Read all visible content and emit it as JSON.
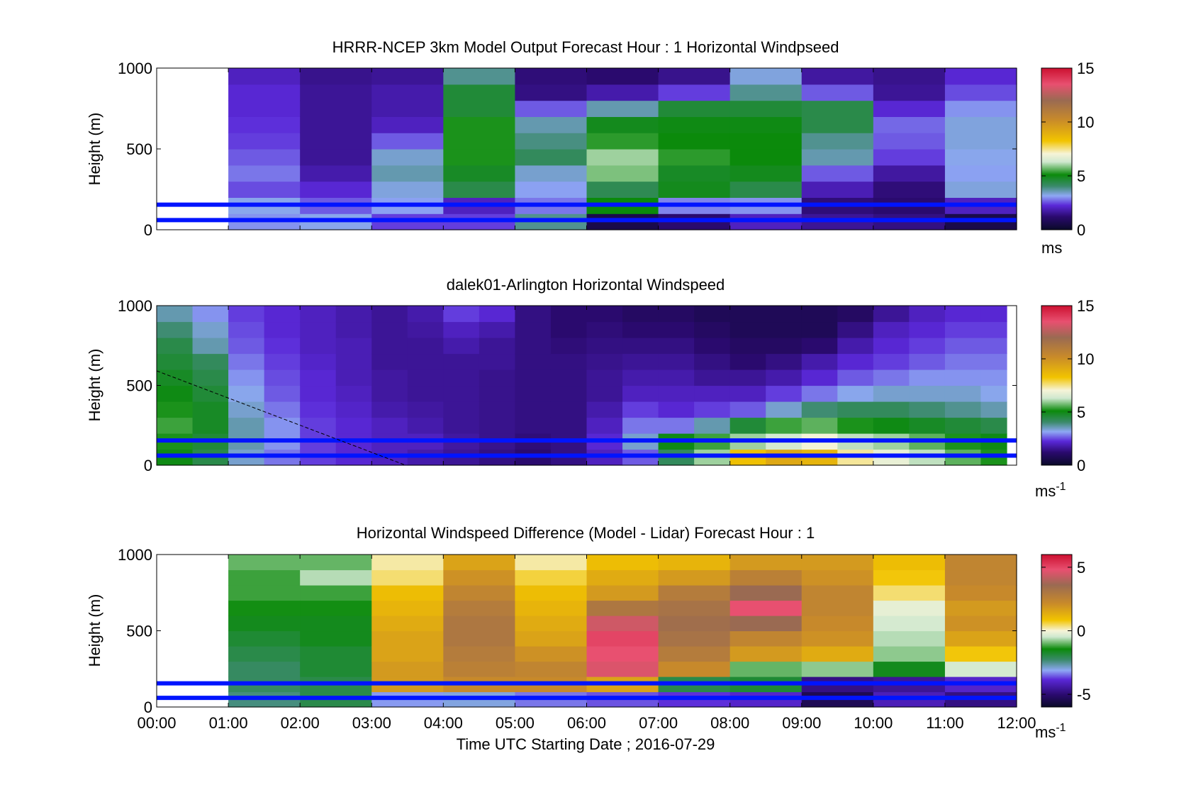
{
  "figure": {
    "xlabel": "Time UTC  Starting Date ; 2016-07-29",
    "x_ticks": [
      "00:00",
      "01:00",
      "02:00",
      "03:00",
      "04:00",
      "05:00",
      "06:00",
      "07:00",
      "08:00",
      "09:00",
      "10:00",
      "11:00",
      "12:00"
    ],
    "y_ticks": [
      "0",
      "500",
      "1000"
    ],
    "ylabel": "Height (m)"
  },
  "chart_data": [
    {
      "type": "heatmap",
      "title": "HRRR-NCEP 3km Model Output   Forecast Hour : 1 Horizontal Windpseed",
      "ylabel": "Height (m)",
      "xlim": [
        0,
        12
      ],
      "ylim": [
        0,
        1000
      ],
      "colorbar": {
        "min": 0,
        "max": 15,
        "ticks": [
          "0",
          "5",
          "10",
          "15"
        ],
        "unit": "ms",
        "unit_sup": ""
      },
      "reference_lines_m": [
        60,
        155
      ],
      "hour_columns": [
        [
          null,
          null,
          null,
          null,
          null,
          null,
          null,
          null,
          null,
          null
        ],
        [
          3.0,
          3.2,
          2.5,
          2.8,
          2.6,
          2.4,
          2.3,
          2.2,
          2.2,
          2.0
        ],
        [
          3.2,
          2.6,
          2.2,
          1.8,
          1.6,
          1.6,
          1.6,
          1.6,
          1.6,
          1.5
        ],
        [
          2.4,
          3.1,
          3.3,
          3.6,
          3.4,
          2.6,
          2.0,
          1.8,
          1.8,
          1.6
        ],
        [
          2.4,
          2.0,
          4.4,
          4.8,
          5.2,
          5.2,
          5.2,
          4.6,
          4.6,
          3.8
        ],
        [
          3.8,
          2.8,
          3.1,
          3.4,
          4.2,
          3.9,
          3.6,
          2.6,
          1.4,
          1.3
        ],
        [
          0.6,
          5.1,
          4.3,
          5.8,
          6.0,
          5.3,
          4.9,
          3.6,
          1.8,
          1.2
        ],
        [
          1.2,
          2.9,
          4.9,
          4.8,
          5.3,
          5.1,
          5.0,
          4.6,
          2.4,
          1.5
        ],
        [
          2.0,
          3.0,
          4.4,
          4.9,
          5.1,
          5.1,
          5.0,
          4.6,
          3.8,
          3.3
        ],
        [
          1.6,
          1.3,
          1.9,
          2.6,
          3.6,
          3.8,
          4.4,
          4.4,
          2.6,
          1.7
        ],
        [
          1.4,
          1.2,
          1.3,
          1.7,
          2.4,
          2.6,
          2.7,
          2.2,
          1.6,
          1.5
        ],
        [
          0.6,
          2.0,
          3.3,
          3.1,
          3.2,
          3.3,
          3.3,
          3.0,
          2.5,
          2.2
        ]
      ]
    },
    {
      "type": "heatmap",
      "title": "dalek01-Arlington  Horizontal Windspeed",
      "ylabel": "Height (m)",
      "xlim": [
        0,
        12
      ],
      "ylim": [
        0,
        1000
      ],
      "colorbar": {
        "min": 0,
        "max": 15,
        "ticks": [
          "0",
          "5",
          "10",
          "15"
        ],
        "unit": "ms",
        "unit_sup": "-1"
      },
      "reference_lines_m": [
        60,
        155
      ],
      "half_hour_columns": [
        [
          5.0,
          5.2,
          5.4,
          5.2,
          5.0,
          4.8,
          4.6,
          4.4,
          4.0,
          3.6
        ],
        [
          4.4,
          4.6,
          4.8,
          4.8,
          4.6,
          4.4,
          4.2,
          3.6,
          3.4,
          3.0
        ],
        [
          3.4,
          3.6,
          3.6,
          3.4,
          3.2,
          3.0,
          2.8,
          2.6,
          2.5,
          2.4
        ],
        [
          2.8,
          3.0,
          3.0,
          2.8,
          2.6,
          2.5,
          2.4,
          2.3,
          2.2,
          2.2
        ],
        [
          2.4,
          2.4,
          2.4,
          2.3,
          2.2,
          2.2,
          2.1,
          2.0,
          2.0,
          2.0
        ],
        [
          2.2,
          2.2,
          2.2,
          2.1,
          2.0,
          1.9,
          1.9,
          1.9,
          1.8,
          1.8
        ],
        [
          2.0,
          2.0,
          2.0,
          1.8,
          1.7,
          1.7,
          1.6,
          1.6,
          1.6,
          1.6
        ],
        [
          1.8,
          2.0,
          1.8,
          1.7,
          1.6,
          1.6,
          1.6,
          1.6,
          1.7,
          1.8
        ],
        [
          1.6,
          1.7,
          1.6,
          1.6,
          1.6,
          1.6,
          1.6,
          1.8,
          2.0,
          2.4
        ],
        [
          1.4,
          1.5,
          1.5,
          1.5,
          1.5,
          1.5,
          1.6,
          1.6,
          1.8,
          2.2
        ],
        [
          1.2,
          1.3,
          1.4,
          1.4,
          1.4,
          1.4,
          1.4,
          1.4,
          1.4,
          1.4
        ],
        [
          1.4,
          1.4,
          1.4,
          1.4,
          1.4,
          1.4,
          1.4,
          1.3,
          1.2,
          1.2
        ],
        [
          2.0,
          2.2,
          2.0,
          1.8,
          1.6,
          1.6,
          1.5,
          1.4,
          1.3,
          1.2
        ],
        [
          2.6,
          3.4,
          2.8,
          2.4,
          2.0,
          1.8,
          1.6,
          1.4,
          1.2,
          1.0
        ],
        [
          4.2,
          5.0,
          2.8,
          2.2,
          2.0,
          1.8,
          1.6,
          1.4,
          1.2,
          1.0
        ],
        [
          6.0,
          5.4,
          3.6,
          2.4,
          2.0,
          1.6,
          1.4,
          1.2,
          1.0,
          0.8
        ],
        [
          8.4,
          6.0,
          4.6,
          2.6,
          2.0,
          1.6,
          1.2,
          1.0,
          0.8,
          0.8
        ],
        [
          9.2,
          6.4,
          5.4,
          3.4,
          2.4,
          1.8,
          1.4,
          1.0,
          0.8,
          0.8
        ],
        [
          8.8,
          7.0,
          5.6,
          4.0,
          2.8,
          2.2,
          1.8,
          1.2,
          0.8,
          0.8
        ],
        [
          7.4,
          6.2,
          5.2,
          4.2,
          3.2,
          2.6,
          2.2,
          1.8,
          1.4,
          1.0
        ],
        [
          6.8,
          6.0,
          5.0,
          4.2,
          3.4,
          2.8,
          2.4,
          2.2,
          2.0,
          1.6
        ],
        [
          6.2,
          5.6,
          4.8,
          4.0,
          3.4,
          3.0,
          2.6,
          2.4,
          2.2,
          2.0
        ],
        [
          5.6,
          5.2,
          4.6,
          3.8,
          3.4,
          3.0,
          2.8,
          2.6,
          2.4,
          2.2
        ],
        [
          5.2,
          5.0,
          4.4,
          3.6,
          3.2,
          3.0,
          2.8,
          2.6,
          2.4,
          2.2
        ]
      ]
    },
    {
      "type": "heatmap",
      "title": "Horizontal Windspeed Difference (Model - Lidar) Forecast Hour : 1",
      "ylabel": "Height (m)",
      "xlim": [
        0,
        12
      ],
      "ylim": [
        0,
        1000
      ],
      "colorbar": {
        "min": -6,
        "max": 6,
        "ticks": [
          "-5",
          "0",
          "5"
        ],
        "unit": "ms",
        "unit_sup": "-1"
      },
      "reference_lines_m": [
        60,
        155
      ],
      "hour_columns": [
        [
          null,
          null,
          null,
          null,
          null,
          null,
          null,
          null,
          null,
          null
        ],
        [
          -2.4,
          -2.2,
          -2.2,
          -2.0,
          -1.8,
          -1.6,
          -1.4,
          -1.2,
          -1.2,
          -1.0
        ],
        [
          -2.0,
          -2.0,
          -1.8,
          -1.8,
          -1.6,
          -1.6,
          -1.4,
          -1.2,
          -0.6,
          -1.0
        ],
        [
          -3.2,
          1.8,
          1.8,
          1.6,
          1.6,
          1.4,
          1.2,
          1.0,
          0.4,
          0.2
        ],
        [
          -3.0,
          2.2,
          2.6,
          2.8,
          3.0,
          3.0,
          2.8,
          2.4,
          2.0,
          1.6
        ],
        [
          -3.4,
          2.2,
          2.4,
          2.0,
          1.6,
          1.4,
          1.2,
          1.0,
          0.6,
          0.2
        ],
        [
          -3.6,
          1.6,
          4.6,
          4.8,
          5.0,
          4.4,
          3.0,
          1.8,
          1.4,
          1.0
        ],
        [
          -3.8,
          -2.0,
          2.2,
          2.8,
          3.2,
          3.4,
          3.2,
          2.8,
          1.8,
          1.2
        ],
        [
          -4.0,
          -1.8,
          -1.0,
          1.8,
          2.4,
          3.6,
          4.8,
          3.6,
          2.6,
          1.8
        ],
        [
          -5.4,
          -4.8,
          -0.8,
          1.4,
          2.0,
          2.2,
          2.4,
          2.4,
          2.0,
          1.8
        ],
        [
          -4.2,
          -4.6,
          -1.6,
          -0.8,
          -0.6,
          -0.4,
          -0.2,
          0.4,
          0.8,
          1.0
        ],
        [
          -4.8,
          -4.0,
          -0.4,
          0.8,
          1.6,
          2.0,
          1.8,
          2.2,
          2.4,
          2.4
        ]
      ]
    }
  ]
}
